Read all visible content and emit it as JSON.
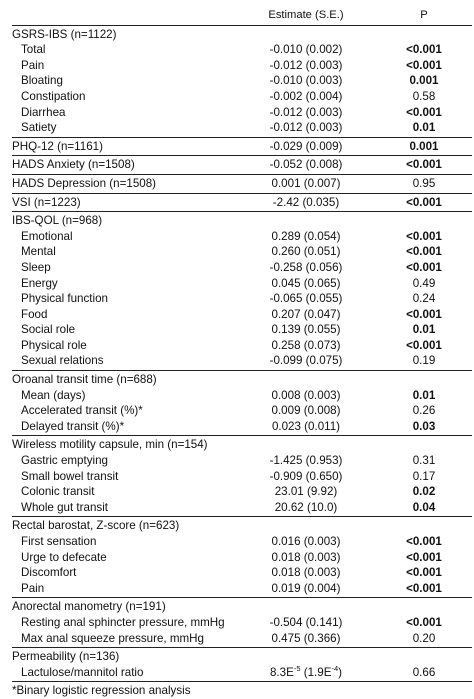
{
  "header": {
    "col_label": "",
    "col_estimate": "Estimate (S.E.)",
    "col_p": "P"
  },
  "groups": [
    {
      "title": "GSRS-IBS (n=1122)",
      "rows": [
        {
          "label": "Total",
          "estimate": "-0.010 (0.002)",
          "p": "<0.001",
          "bold": true
        },
        {
          "label": "Pain",
          "estimate": "-0.012 (0.003)",
          "p": "<0.001",
          "bold": true
        },
        {
          "label": "Bloating",
          "estimate": "-0.010 (0.003)",
          "p": "0.001",
          "bold": true
        },
        {
          "label": "Constipation",
          "estimate": "-0.002 (0.004)",
          "p": "0.58",
          "bold": false
        },
        {
          "label": "Diarrhea",
          "estimate": "-0.012 (0.003)",
          "p": "<0.001",
          "bold": true
        },
        {
          "label": "Satiety",
          "estimate": "-0.012 (0.003)",
          "p": "0.01",
          "bold": true
        }
      ]
    },
    {
      "title": "",
      "rows": [
        {
          "label": "PHQ-12 (n=1161)",
          "estimate": "-0.029 (0.009)",
          "p": "0.001",
          "bold": true,
          "top": true
        },
        {
          "label": "HADS Anxiety (n=1508)",
          "estimate": "-0.052 (0.008)",
          "p": "<0.001",
          "bold": true,
          "top": true
        },
        {
          "label": "HADS Depression (n=1508)",
          "estimate": "0.001 (0.007)",
          "p": "0.95",
          "bold": false,
          "top": true
        },
        {
          "label": "VSI (n=1223)",
          "estimate": "-2.42 (0.035)",
          "p": "<0.001",
          "bold": true,
          "top": true
        }
      ]
    },
    {
      "title": "IBS-QOL (n=968)",
      "rows": [
        {
          "label": "Emotional",
          "estimate": "0.289 (0.054)",
          "p": "<0.001",
          "bold": true
        },
        {
          "label": "Mental",
          "estimate": "0.260 (0.051)",
          "p": "<0.001",
          "bold": true
        },
        {
          "label": "Sleep",
          "estimate": "-0.258 (0.056)",
          "p": "<0.001",
          "bold": true
        },
        {
          "label": "Energy",
          "estimate": "0.045 (0.065)",
          "p": "0.49",
          "bold": false
        },
        {
          "label": "Physical function",
          "estimate": "-0.065 (0.055)",
          "p": "0.24",
          "bold": false
        },
        {
          "label": "Food",
          "estimate": "0.207 (0.047)",
          "p": "<0.001",
          "bold": true
        },
        {
          "label": "Social role",
          "estimate": "0.139 (0.055)",
          "p": "0.01",
          "bold": true
        },
        {
          "label": "Physical role",
          "estimate": "0.258 (0.073)",
          "p": "<0.001",
          "bold": true
        },
        {
          "label": "Sexual relations",
          "estimate": "-0.099 (0.075)",
          "p": "0.19",
          "bold": false
        }
      ]
    },
    {
      "title": "Oroanal transit time (n=688)",
      "rows": [
        {
          "label": "Mean (days)",
          "estimate": "0.008 (0.003)",
          "p": "0.01",
          "bold": true
        },
        {
          "label": "Accelerated transit (%)*",
          "estimate": "0.009 (0.008)",
          "p": "0.26",
          "bold": false
        },
        {
          "label": "Delayed transit (%)*",
          "estimate": "0.023 (0.011)",
          "p": "0.03",
          "bold": true
        }
      ]
    },
    {
      "title": "Wireless motility capsule, min (n=154)",
      "rows": [
        {
          "label": "Gastric emptying",
          "estimate": "-1.425 (0.953)",
          "p": "0.31",
          "bold": false
        },
        {
          "label": "Small bowel transit",
          "estimate": "-0.909 (0.650)",
          "p": "0.17",
          "bold": false
        },
        {
          "label": "Colonic transit",
          "estimate": "23.01 (9.92)",
          "p": "0.02",
          "bold": true
        },
        {
          "label": "Whole gut transit",
          "estimate": "20.62 (10.0)",
          "p": "0.04",
          "bold": true
        }
      ]
    },
    {
      "title": "Rectal barostat, Z-score (n=623)",
      "rows": [
        {
          "label": "First sensation",
          "estimate": "0.016 (0.003)",
          "p": "<0.001",
          "bold": true
        },
        {
          "label": "Urge to defecate",
          "estimate": "0.018 (0.003)",
          "p": "<0.001",
          "bold": true
        },
        {
          "label": "Discomfort",
          "estimate": "0.018 (0.003)",
          "p": "<0.001",
          "bold": true
        },
        {
          "label": "Pain",
          "estimate": "0.019 (0.004)",
          "p": "<0.001",
          "bold": true
        }
      ]
    },
    {
      "title": "Anorectal manometry (n=191)",
      "rows": [
        {
          "label": "Resting anal sphincter pressure, mmHg",
          "estimate": "-0.504 (0.141)",
          "p": "<0.001",
          "bold": true
        },
        {
          "label": "Max anal squeeze pressure, mmHg",
          "estimate": "0.475 (0.366)",
          "p": "0.20",
          "bold": false
        }
      ]
    },
    {
      "title": "Permeability (n=136)",
      "rows": [
        {
          "label": "Lactulose/mannitol ratio",
          "estimate_html": true,
          "estimate": "8.3E-5 (1.9E-4)",
          "estimate_base1": "8.3E",
          "estimate_exp1": "-5",
          "estimate_mid": " (1.9E",
          "estimate_exp2": "-4",
          "estimate_end": ")",
          "p": "0.66",
          "bold": false
        }
      ]
    }
  ],
  "footnote": "*Binary logistic regression analysis"
}
